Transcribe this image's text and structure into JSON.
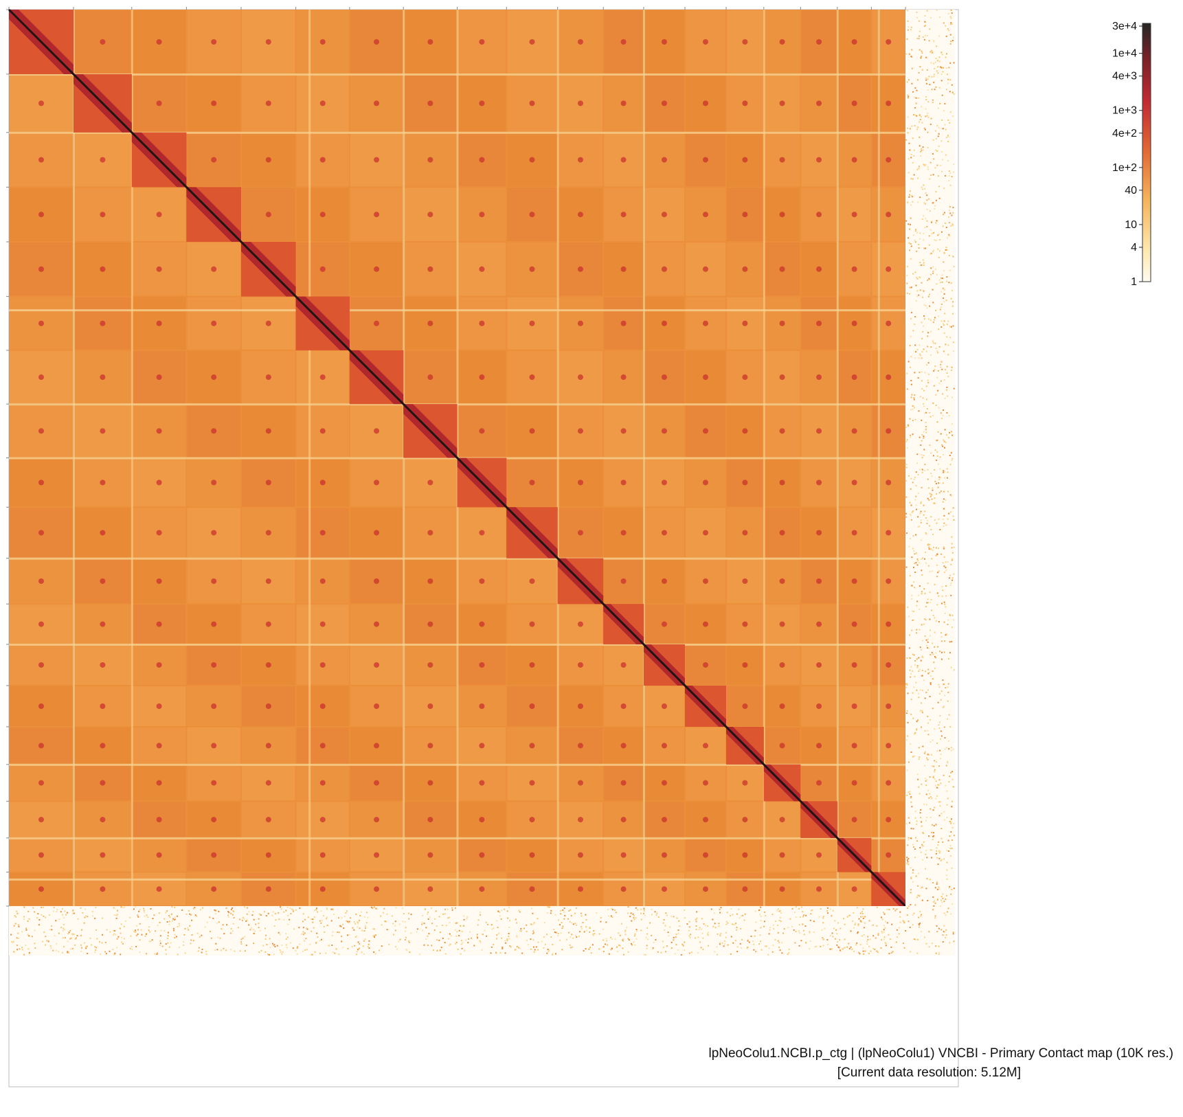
{
  "chart_data": {
    "type": "heatmap",
    "title": "",
    "xlabel": "",
    "ylabel": "",
    "scale": "log",
    "colormap": [
      "#fffbf0",
      "#fcd88a",
      "#f0a04a",
      "#e2572c",
      "#b8212e",
      "#5a1a1a",
      "#222222"
    ],
    "colorbar": {
      "labels": [
        "3e+4",
        "1e+4",
        "4e+3",
        "1e+3",
        "4e+2",
        "1e+2",
        "40",
        "10",
        "4",
        "1"
      ],
      "values": [
        30000,
        10000,
        4000,
        1000,
        400,
        100,
        40,
        10,
        4,
        1
      ],
      "min": 1,
      "max": 30000
    },
    "chromosome_boundaries_fraction": [
      0,
      0.072,
      0.137,
      0.198,
      0.259,
      0.32,
      0.38,
      0.44,
      0.5,
      0.555,
      0.612,
      0.663,
      0.708,
      0.754,
      0.8,
      0.842,
      0.883,
      0.924,
      0.962,
      1.0
    ],
    "unplaced_region": "scaffolds beyond main assembly (sparse contacts)"
  },
  "caption": {
    "line1": "lpNeoColu1.NCBI.p_ctg | (lpNeoColu1) VNCBI - Primary Contact map (10K res.)",
    "line2": "[Current data resolution: 5.12M]"
  }
}
